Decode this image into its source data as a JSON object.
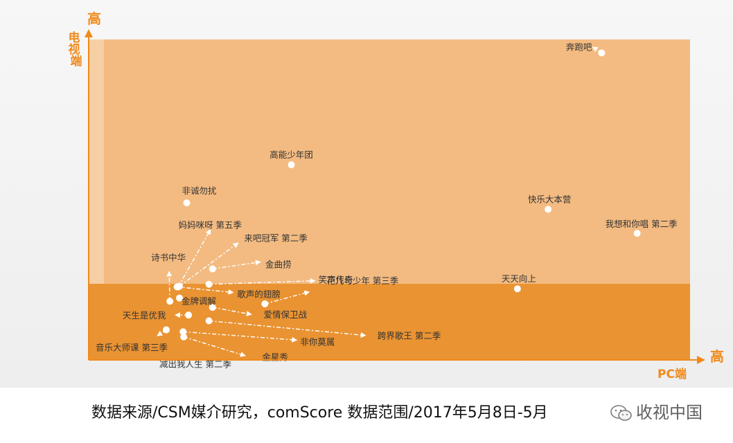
{
  "chart_data": {
    "type": "scatter",
    "y_axis": {
      "label_high": "高",
      "title": "电视端"
    },
    "x_axis": {
      "label_high": "高",
      "title": "PC端"
    },
    "colors": {
      "upper_zone": "#f3bb81",
      "lower_zone": "#ea9332",
      "axis": "#f08a1c",
      "point": "#ffffff",
      "label": "#333333"
    },
    "points": [
      {
        "name": "奔跑吧",
        "x": 0.853,
        "y": 0.958
      },
      {
        "name": "高能少年团",
        "x": 0.337,
        "y": 0.609
      },
      {
        "name": "快乐大本营",
        "x": 0.764,
        "y": 0.47
      },
      {
        "name": "我想和你唱 第二季",
        "x": 0.912,
        "y": 0.395
      },
      {
        "name": "天天向上",
        "x": 0.713,
        "y": 0.222
      },
      {
        "name": "非诚勿扰",
        "x": 0.163,
        "y": 0.49
      },
      {
        "name": "诗书中华",
        "x": 0.135,
        "y": 0.183
      },
      {
        "name": "妈妈咪呀 第五季",
        "x": 0.149,
        "y": 0.228
      },
      {
        "name": "来吧冠军 第二季",
        "x": 0.151,
        "y": 0.23
      },
      {
        "name": "金曲捞",
        "x": 0.206,
        "y": 0.284
      },
      {
        "name": "歌声的翅膀",
        "x": 0.147,
        "y": 0.228
      },
      {
        "name": "笑声传奇",
        "x": 0.2,
        "y": 0.236
      },
      {
        "name": "金牌调解",
        "x": 0.151,
        "y": 0.193
      },
      {
        "name": "花儿与少年 第三季",
        "x": 0.293,
        "y": 0.175
      },
      {
        "name": "爱情保卫战",
        "x": 0.206,
        "y": 0.164
      },
      {
        "name": "天生是优我",
        "x": 0.166,
        "y": 0.14
      },
      {
        "name": "跨界歌王 第二季",
        "x": 0.2,
        "y": 0.122
      },
      {
        "name": "非你莫属",
        "x": 0.157,
        "y": 0.088
      },
      {
        "name": "音乐大师课 第三季",
        "x": 0.129,
        "y": 0.094
      },
      {
        "name": "金星秀",
        "x": 0.158,
        "y": 0.072
      },
      {
        "name": "减出我人生 第二季",
        "x": 0.129,
        "y": 0.094
      }
    ]
  },
  "footer": {
    "source": "数据来源/CSM媒介研究，comScore   数据范围/2017年5月8日-5月",
    "watermark": "收视中国"
  }
}
